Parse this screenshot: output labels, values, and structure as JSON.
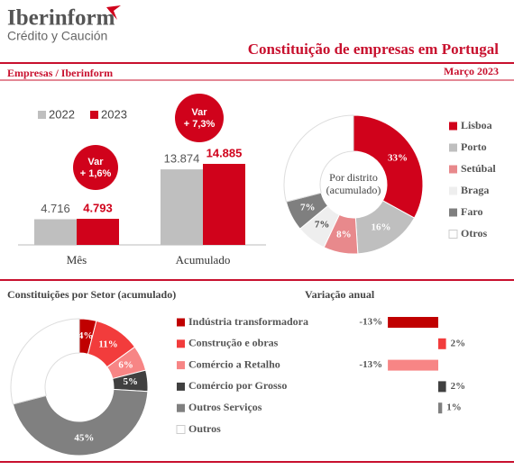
{
  "header": {
    "brand": "Iberinform",
    "tagline": "Crédito y Caución",
    "title": "Constituição de empresas em Portugal",
    "section": "Empresas / Iberinform",
    "date": "Março 2023"
  },
  "chart_data": [
    {
      "type": "bar",
      "categories": [
        "Mês",
        "Acumulado"
      ],
      "series": [
        {
          "name": "2022",
          "color": "#bfbfbf",
          "values": [
            4716,
            13874
          ],
          "value_labels": [
            "4.716",
            "13.874"
          ]
        },
        {
          "name": "2023",
          "color": "#d0021b",
          "values": [
            4793,
            14885
          ],
          "value_labels": [
            "4.793",
            "14.885"
          ]
        }
      ],
      "annotations": [
        [
          "Var",
          "+ 1,6%"
        ],
        [
          "Var",
          "+ 7,3%"
        ]
      ]
    },
    {
      "type": "pie",
      "title": [
        "Por distrito",
        "(acumulado)"
      ],
      "categories": [
        "Lisboa",
        "Porto",
        "Setúbal",
        "Braga",
        "Faro",
        "Otros"
      ],
      "values": [
        33,
        16,
        8,
        7,
        7,
        29
      ],
      "value_labels": [
        "33%",
        "16%",
        "8%",
        "7%",
        "7%",
        null
      ],
      "colors": [
        "#d0021b",
        "#bfbfbf",
        "#e8898c",
        "#eeeeee",
        "#7f7f7f",
        "#ffffff"
      ]
    },
    {
      "type": "pie",
      "title": "Constituições por Setor (acumulado)",
      "categories": [
        "Indústria transformadora",
        "Construção e obras",
        "Comércio a Retalho",
        "Comércio por Grosso",
        "Outros Serviços",
        "Outros"
      ],
      "values": [
        4,
        11,
        6,
        5,
        45,
        29
      ],
      "value_labels": [
        "4%",
        "11%",
        "6%",
        "5%",
        "45%",
        null
      ],
      "colors": [
        "#c00000",
        "#f23c3c",
        "#f78585",
        "#404040",
        "#808080",
        "#ffffff"
      ]
    },
    {
      "type": "hbar",
      "title": "Variação anual",
      "values": [
        -13,
        2,
        -13,
        2,
        1
      ],
      "value_labels": [
        "-13%",
        "2%",
        "-13%",
        "2%",
        "1%"
      ],
      "colors": [
        "#c00000",
        "#f23c3c",
        "#f78585",
        "#404040",
        "#808080"
      ]
    }
  ]
}
